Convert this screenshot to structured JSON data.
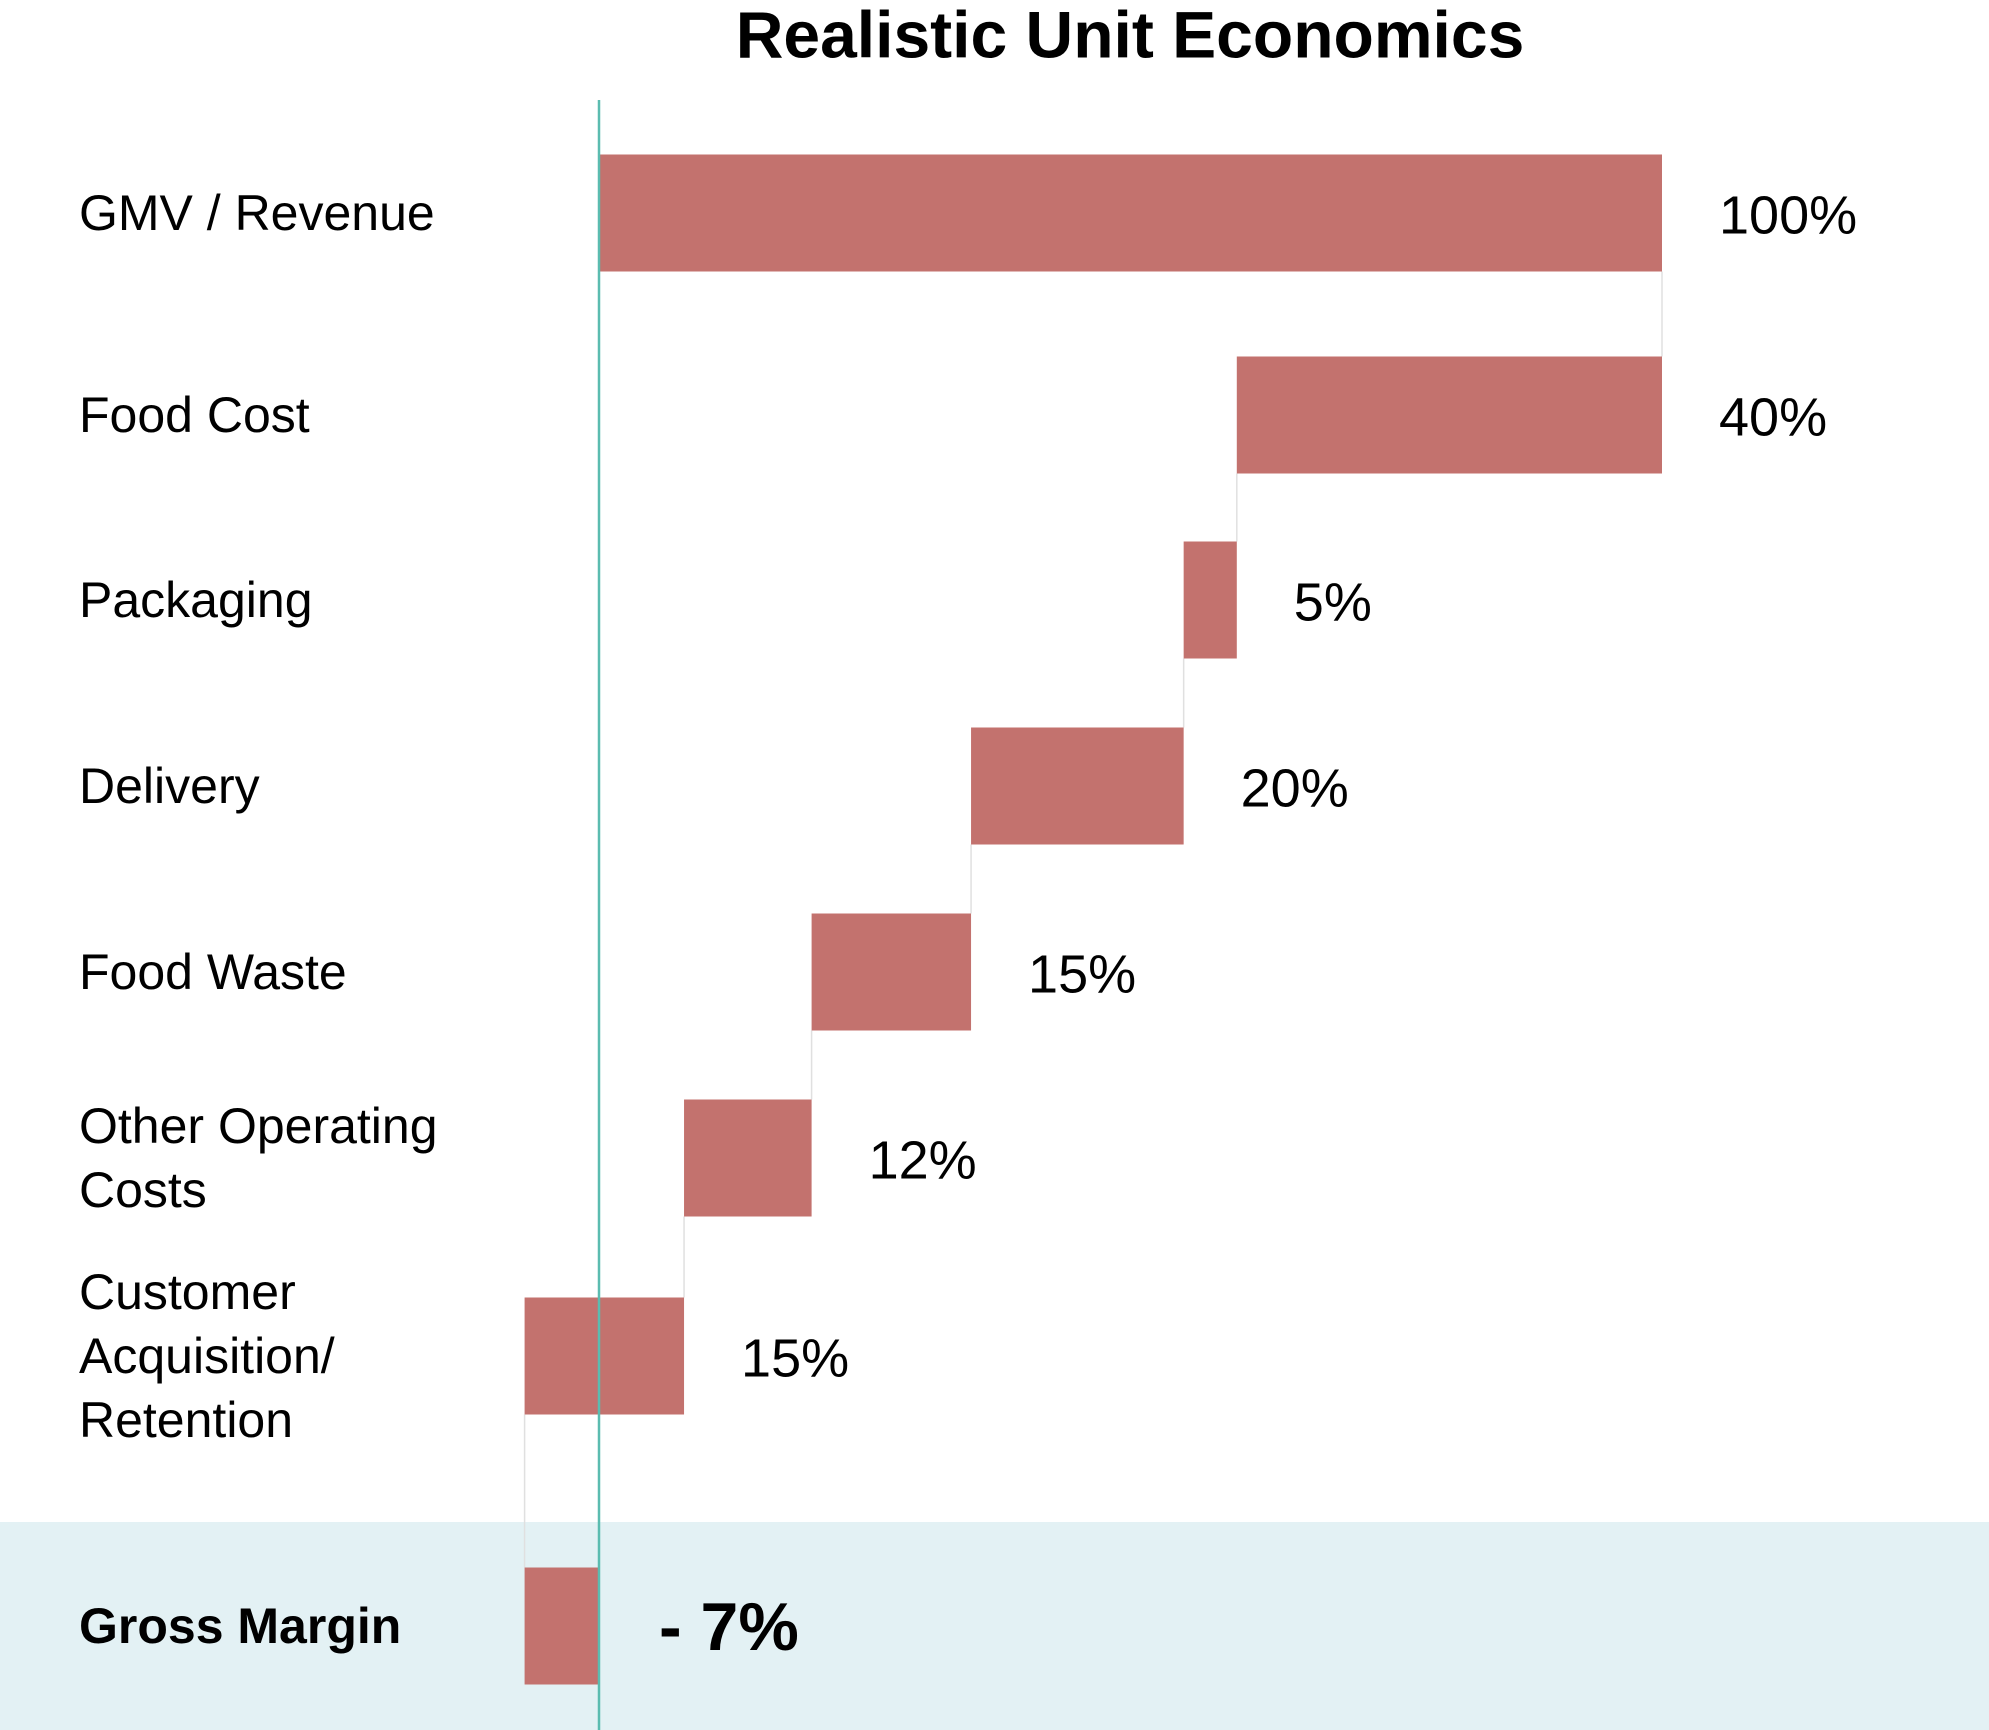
{
  "chart_data": {
    "type": "waterfall",
    "title": "Realistic Unit Economics",
    "categories": [
      "GMV / Revenue",
      "Food Cost",
      "Packaging",
      "Delivery",
      "Food Waste",
      "Other Operating Costs",
      "Customer Acquisition/ Retention",
      "Gross Margin"
    ],
    "values": [
      100,
      40,
      5,
      20,
      15,
      12,
      15,
      -7
    ],
    "value_labels": [
      "100%",
      "40%",
      "5%",
      "20%",
      "15%",
      "12%",
      "15%",
      "- 7%"
    ],
    "color": "#c3726e"
  }
}
